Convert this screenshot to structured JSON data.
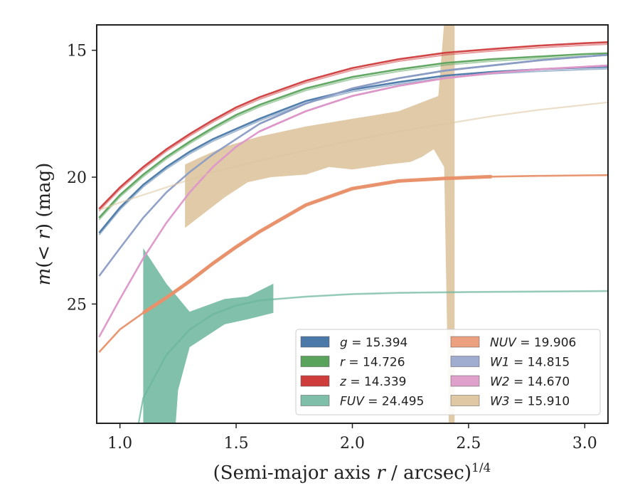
{
  "chart_data": {
    "type": "line",
    "xlabel": "(Semi-major axis r / arcsec)^1/4",
    "ylabel": "m(< r) (mag)",
    "xlim": [
      0.9,
      3.1
    ],
    "ylim": [
      29.7,
      14.0
    ],
    "y_inverted": true,
    "grid": false,
    "legend_position": "lower-right",
    "x_ticks": [
      1.0,
      1.5,
      2.0,
      2.5,
      3.0
    ],
    "x_tick_labels": [
      "1.0",
      "1.5",
      "2.0",
      "2.5",
      "3.0"
    ],
    "y_ticks": [
      15,
      20,
      25
    ],
    "y_tick_labels": [
      "15",
      "20",
      "25"
    ],
    "series": [
      {
        "name": "g = 15.394",
        "color": "#4a78a8",
        "x": [
          0.91,
          1.0,
          1.1,
          1.2,
          1.3,
          1.4,
          1.5,
          1.6,
          1.8,
          2.0,
          2.2,
          2.4,
          2.6,
          2.8,
          3.0,
          3.1
        ],
        "y": [
          22.2,
          21.2,
          20.3,
          19.6,
          19.0,
          18.5,
          18.1,
          17.7,
          17.0,
          16.55,
          16.25,
          16.0,
          15.85,
          15.75,
          15.68,
          15.65
        ],
        "band": 0.08
      },
      {
        "name": "r = 14.726",
        "color": "#5aa35c",
        "x": [
          0.91,
          1.0,
          1.1,
          1.2,
          1.3,
          1.4,
          1.5,
          1.6,
          1.8,
          2.0,
          2.2,
          2.4,
          2.6,
          2.8,
          3.0,
          3.1
        ],
        "y": [
          21.6,
          20.7,
          19.9,
          19.2,
          18.6,
          18.05,
          17.55,
          17.15,
          16.5,
          16.05,
          15.75,
          15.5,
          15.35,
          15.25,
          15.15,
          15.12
        ],
        "band": 0.08
      },
      {
        "name": "z = 14.339",
        "color": "#cf3c3c",
        "x": [
          0.91,
          1.0,
          1.1,
          1.2,
          1.3,
          1.4,
          1.5,
          1.6,
          1.8,
          2.0,
          2.2,
          2.4,
          2.6,
          2.8,
          3.0,
          3.1
        ],
        "y": [
          21.25,
          20.4,
          19.6,
          18.9,
          18.3,
          17.75,
          17.25,
          16.85,
          16.2,
          15.7,
          15.35,
          15.1,
          14.95,
          14.82,
          14.72,
          14.68
        ],
        "band": 0.08
      },
      {
        "name": "FUV = 24.495",
        "color": "#6bb59c",
        "x": [
          1.08,
          1.1,
          1.2,
          1.3,
          1.4,
          1.5,
          1.6,
          1.8,
          2.0,
          2.2,
          2.5,
          2.8,
          3.1
        ],
        "y": [
          29.7,
          28.7,
          27.0,
          26.0,
          25.4,
          25.05,
          24.85,
          24.7,
          24.6,
          24.55,
          24.52,
          24.5,
          24.48
        ],
        "band": 0.02,
        "faded": true
      },
      {
        "name": "NUV = 19.906",
        "color": "#e8906a",
        "x": [
          0.91,
          1.0,
          1.1,
          1.2,
          1.3,
          1.4,
          1.5,
          1.6,
          1.8,
          2.0,
          2.2,
          2.4,
          2.6,
          2.8,
          3.0,
          3.1
        ],
        "y": [
          26.9,
          26.0,
          25.35,
          24.75,
          24.1,
          23.4,
          22.75,
          22.15,
          21.1,
          20.45,
          20.15,
          20.05,
          19.98,
          19.95,
          19.93,
          19.92
        ],
        "faded_from": 2.6
      },
      {
        "name": "W1 = 14.815",
        "color": "#8b9cc4",
        "x": [
          0.91,
          1.0,
          1.1,
          1.2,
          1.3,
          1.4,
          1.5,
          1.6,
          1.8,
          2.0,
          2.2,
          2.4,
          2.6,
          2.8,
          3.0,
          3.1
        ],
        "y": [
          23.9,
          22.8,
          21.6,
          20.6,
          19.8,
          19.1,
          18.5,
          17.9,
          17.1,
          16.5,
          16.1,
          15.8,
          15.6,
          15.4,
          15.25,
          15.18
        ],
        "faded_to": 1.65
      },
      {
        "name": "W2 = 14.670",
        "color": "#dc96c8",
        "x": [
          0.91,
          1.0,
          1.1,
          1.2,
          1.3,
          1.4,
          1.5,
          1.6,
          1.8,
          2.0,
          2.2,
          2.4,
          2.6,
          2.8,
          3.0,
          3.1
        ],
        "y": [
          26.3,
          24.8,
          23.2,
          21.8,
          20.6,
          19.6,
          18.8,
          18.2,
          17.4,
          16.8,
          16.4,
          16.1,
          15.9,
          15.75,
          15.65,
          15.6
        ],
        "faded_to": 1.65
      },
      {
        "name": "W3 = 15.910",
        "color": "#ddc49e",
        "x": [
          0.91,
          1.0,
          1.2,
          1.4,
          1.6,
          1.8,
          2.0,
          2.2,
          2.4,
          2.6,
          2.8,
          3.0,
          3.1
        ],
        "y": [
          21.3,
          21.0,
          20.4,
          19.8,
          19.35,
          18.95,
          18.55,
          18.2,
          17.9,
          17.6,
          17.35,
          17.15,
          17.05
        ],
        "faded": true
      }
    ]
  },
  "legend": {
    "items": [
      {
        "var": "g",
        "value": " = 15.394",
        "color": "#4a78a8"
      },
      {
        "var": "r",
        "value": " = 14.726",
        "color": "#5aa35c"
      },
      {
        "var": "z",
        "value": " = 14.339",
        "color": "#cf3c3c"
      },
      {
        "var": "FUV",
        "value": " = 24.495",
        "color": "#7fbfa9"
      },
      {
        "var": "NUV",
        "value": " = 19.906",
        "color": "#eca07f"
      },
      {
        "var": "W1",
        "value": " = 14.815",
        "color": "#a0acd0"
      },
      {
        "var": "W2",
        "value": " = 14.670",
        "color": "#e0a0cc"
      },
      {
        "var": "W3",
        "value": " = 15.910",
        "color": "#e0c8a4"
      }
    ]
  }
}
